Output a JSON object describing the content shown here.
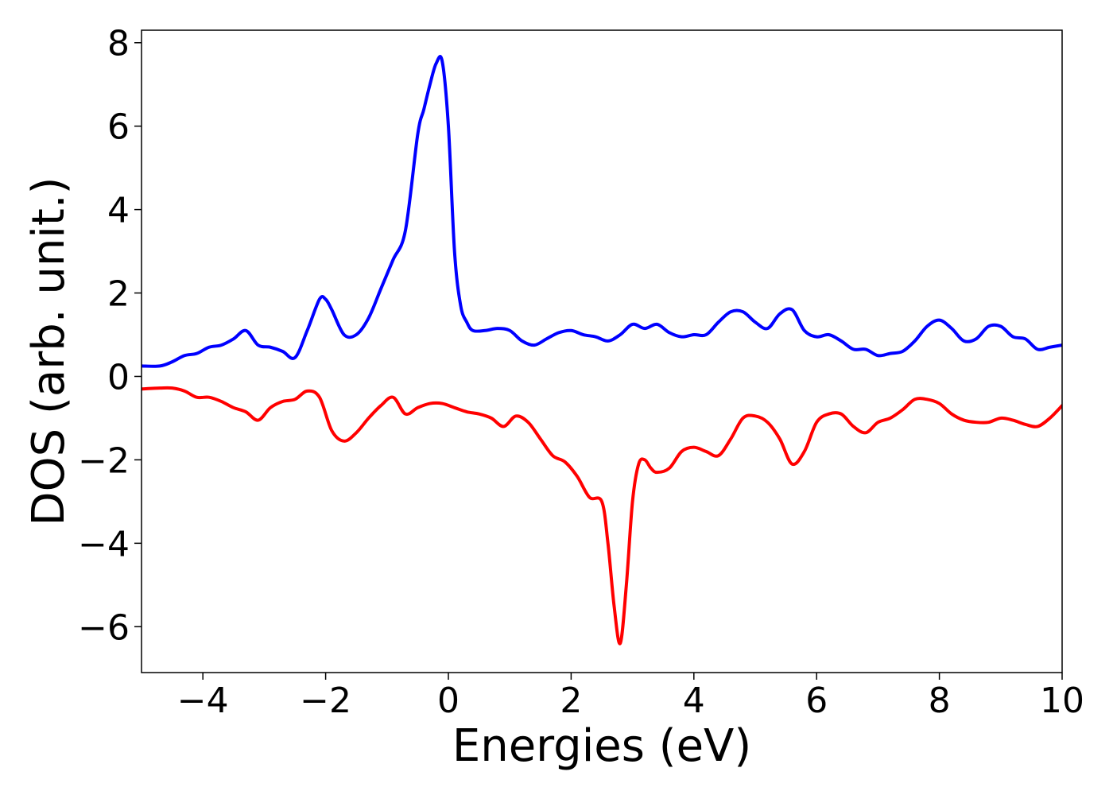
{
  "chart_data": {
    "type": "line",
    "xlabel": "Energies (eV)",
    "ylabel": "DOS (arb. unit.)",
    "xlim": [
      -5,
      10
    ],
    "ylim": [
      -7.1,
      8.3
    ],
    "xticks": [
      {
        "value": -4,
        "label": "−4"
      },
      {
        "value": -2,
        "label": "−2"
      },
      {
        "value": 0,
        "label": "0"
      },
      {
        "value": 2,
        "label": "2"
      },
      {
        "value": 4,
        "label": "4"
      },
      {
        "value": 6,
        "label": "6"
      },
      {
        "value": 8,
        "label": "8"
      },
      {
        "value": 10,
        "label": "10"
      }
    ],
    "yticks": [
      {
        "value": -6,
        "label": "−6"
      },
      {
        "value": -4,
        "label": "−4"
      },
      {
        "value": -2,
        "label": "−2"
      },
      {
        "value": 0,
        "label": "0"
      },
      {
        "value": 2,
        "label": "2"
      },
      {
        "value": 4,
        "label": "4"
      },
      {
        "value": 6,
        "label": "6"
      },
      {
        "value": 8,
        "label": "8"
      }
    ],
    "grid": false,
    "legend": "none",
    "series": [
      {
        "color": "#0000ff",
        "x": [
          -5,
          -4.7,
          -4.5,
          -4.3,
          -4.1,
          -3.9,
          -3.7,
          -3.5,
          -3.3,
          -3.1,
          -2.9,
          -2.7,
          -2.5,
          -2.3,
          -2.1,
          -2.0,
          -1.9,
          -1.7,
          -1.5,
          -1.3,
          -1.1,
          -0.9,
          -0.7,
          -0.5,
          -0.4,
          -0.3,
          -0.2,
          -0.1,
          0.0,
          0.1,
          0.2,
          0.3,
          0.4,
          0.6,
          0.8,
          1.0,
          1.2,
          1.4,
          1.6,
          1.8,
          2.0,
          2.2,
          2.4,
          2.6,
          2.8,
          3.0,
          3.2,
          3.4,
          3.6,
          3.8,
          4.0,
          4.2,
          4.4,
          4.6,
          4.8,
          5.0,
          5.2,
          5.4,
          5.6,
          5.8,
          6.0,
          6.2,
          6.4,
          6.6,
          6.8,
          7.0,
          7.2,
          7.4,
          7.6,
          7.8,
          8.0,
          8.2,
          8.4,
          8.6,
          8.8,
          9.0,
          9.2,
          9.4,
          9.6,
          9.8,
          10.0
        ],
        "y": [
          0.25,
          0.25,
          0.35,
          0.5,
          0.55,
          0.7,
          0.75,
          0.9,
          1.1,
          0.75,
          0.7,
          0.6,
          0.45,
          1.1,
          1.85,
          1.85,
          1.6,
          1.0,
          1.0,
          1.4,
          2.1,
          2.8,
          3.5,
          5.8,
          6.4,
          7.0,
          7.5,
          7.55,
          6.0,
          3.0,
          1.7,
          1.3,
          1.1,
          1.1,
          1.15,
          1.1,
          0.85,
          0.75,
          0.9,
          1.05,
          1.1,
          1.0,
          0.95,
          0.85,
          1.0,
          1.25,
          1.15,
          1.25,
          1.05,
          0.95,
          1.0,
          1.0,
          1.3,
          1.55,
          1.55,
          1.3,
          1.15,
          1.5,
          1.6,
          1.1,
          0.95,
          1.0,
          0.85,
          0.65,
          0.65,
          0.5,
          0.55,
          0.6,
          0.85,
          1.2,
          1.35,
          1.15,
          0.85,
          0.9,
          1.2,
          1.2,
          0.95,
          0.9,
          0.65,
          0.7,
          0.75
        ]
      },
      {
        "color": "#ff0000",
        "x": [
          -5,
          -4.7,
          -4.5,
          -4.3,
          -4.1,
          -3.9,
          -3.7,
          -3.5,
          -3.3,
          -3.1,
          -2.9,
          -2.7,
          -2.5,
          -2.3,
          -2.1,
          -1.9,
          -1.7,
          -1.5,
          -1.3,
          -1.1,
          -0.9,
          -0.7,
          -0.5,
          -0.3,
          -0.1,
          0.1,
          0.3,
          0.5,
          0.7,
          0.9,
          1.1,
          1.3,
          1.5,
          1.7,
          1.9,
          2.1,
          2.3,
          2.5,
          2.6,
          2.7,
          2.8,
          2.9,
          3.0,
          3.1,
          3.2,
          3.3,
          3.4,
          3.6,
          3.8,
          4.0,
          4.2,
          4.4,
          4.6,
          4.8,
          5.0,
          5.2,
          5.4,
          5.6,
          5.8,
          6.0,
          6.2,
          6.4,
          6.6,
          6.8,
          7.0,
          7.2,
          7.4,
          7.6,
          7.8,
          8.0,
          8.2,
          8.4,
          8.6,
          8.8,
          9.0,
          9.2,
          9.4,
          9.6,
          9.8,
          10.0
        ],
        "y": [
          -0.3,
          -0.28,
          -0.28,
          -0.35,
          -0.5,
          -0.5,
          -0.6,
          -0.75,
          -0.85,
          -1.05,
          -0.75,
          -0.6,
          -0.55,
          -0.35,
          -0.5,
          -1.3,
          -1.55,
          -1.35,
          -1.0,
          -0.7,
          -0.5,
          -0.9,
          -0.75,
          -0.65,
          -0.65,
          -0.75,
          -0.85,
          -0.9,
          -1.0,
          -1.2,
          -0.95,
          -1.1,
          -1.5,
          -1.9,
          -2.05,
          -2.4,
          -2.9,
          -3.0,
          -4.0,
          -5.5,
          -6.4,
          -5.0,
          -3.0,
          -2.1,
          -2.0,
          -2.2,
          -2.3,
          -2.2,
          -1.8,
          -1.7,
          -1.8,
          -1.9,
          -1.5,
          -1.0,
          -0.95,
          -1.1,
          -1.5,
          -2.1,
          -1.8,
          -1.1,
          -0.9,
          -0.9,
          -1.2,
          -1.35,
          -1.1,
          -1.0,
          -0.8,
          -0.55,
          -0.55,
          -0.65,
          -0.9,
          -1.05,
          -1.1,
          -1.1,
          -1.0,
          -1.05,
          -1.15,
          -1.2,
          -1.0,
          -0.7
        ]
      }
    ]
  }
}
